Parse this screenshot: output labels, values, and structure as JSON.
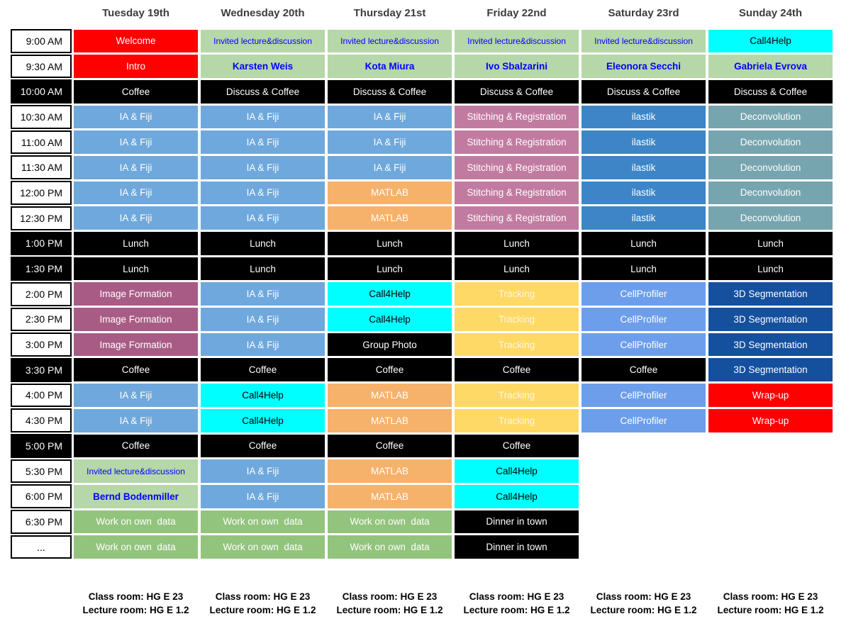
{
  "header": {
    "days": [
      "Tuesday 19th",
      "Wednesday 20th",
      "Thursday 21st",
      "Friday 22nd",
      "Saturday 23rd",
      "Sunday 24th"
    ]
  },
  "palette": {
    "red": {
      "bg": "#ff0000",
      "fg": "#ffffff"
    },
    "black": {
      "bg": "#000000",
      "fg": "#ffffff"
    },
    "fiji": {
      "bg": "#6fa8dc",
      "fg": "#ffffff"
    },
    "invited": {
      "bg": "#b6d7a8",
      "fg": "#0000ff",
      "fs": 12
    },
    "speaker": {
      "bg": "#b6d7a8",
      "fg": "#0000ff",
      "bold": true
    },
    "work": {
      "bg": "#93c47d",
      "fg": "#ffffff"
    },
    "matlab": {
      "bg": "#f6b26b",
      "fg": "#ffffff"
    },
    "call4help": {
      "bg": "#00ffff",
      "fg": "#000000"
    },
    "image_formation": {
      "bg": "#a85c85",
      "fg": "#ffffff"
    },
    "stitching": {
      "bg": "#c27ba0",
      "fg": "#ffffff"
    },
    "ilastik": {
      "bg": "#3d85c6",
      "fg": "#ffffff"
    },
    "deconvolution": {
      "bg": "#76a5af",
      "fg": "#ffffff"
    },
    "tracking": {
      "bg": "#ffd966",
      "fg": "#fdf6df"
    },
    "cellprofiler": {
      "bg": "#6d9eeb",
      "fg": "#ffffff"
    },
    "seg3d": {
      "bg": "#15509e",
      "fg": "#ffffff"
    },
    "empty": {
      "bg": "transparent",
      "fg": "#000000"
    }
  },
  "schedule": {
    "rows": [
      {
        "time": "9:00 AM",
        "dark": false,
        "cells": [
          {
            "text": "Welcome",
            "style": "red"
          },
          {
            "text": "Invited lecture&discussion",
            "style": "invited"
          },
          {
            "text": "Invited lecture&discussion",
            "style": "invited"
          },
          {
            "text": "Invited lecture&discussion",
            "style": "invited"
          },
          {
            "text": "Invited lecture&discussion",
            "style": "invited"
          },
          {
            "text": "Call4Help",
            "style": "call4help"
          }
        ]
      },
      {
        "time": "9:30 AM",
        "dark": false,
        "cells": [
          {
            "text": "Intro",
            "style": "red"
          },
          {
            "text": "Karsten Weis",
            "style": "speaker"
          },
          {
            "text": "Kota Miura",
            "style": "speaker"
          },
          {
            "text": "Ivo Sbalzarini",
            "style": "speaker"
          },
          {
            "text": "Eleonora Secchi",
            "style": "speaker"
          },
          {
            "text": "Gabriela Evrova",
            "style": "speaker"
          }
        ]
      },
      {
        "time": "10:00 AM",
        "dark": true,
        "cells": [
          {
            "text": "Coffee",
            "style": "black"
          },
          {
            "text": "Discuss & Coffee",
            "style": "black"
          },
          {
            "text": "Discuss & Coffee",
            "style": "black"
          },
          {
            "text": "Discuss & Coffee",
            "style": "black"
          },
          {
            "text": "Discuss & Coffee",
            "style": "black"
          },
          {
            "text": "Discuss & Coffee",
            "style": "black"
          }
        ]
      },
      {
        "time": "10:30 AM",
        "dark": false,
        "cells": [
          {
            "text": "IA & Fiji",
            "style": "fiji"
          },
          {
            "text": "IA & Fiji",
            "style": "fiji"
          },
          {
            "text": "IA & Fiji",
            "style": "fiji"
          },
          {
            "text": "Stitching & Registration",
            "style": "stitching"
          },
          {
            "text": "ilastik",
            "style": "ilastik"
          },
          {
            "text": "Deconvolution",
            "style": "deconvolution"
          }
        ]
      },
      {
        "time": "11:00 AM",
        "dark": false,
        "cells": [
          {
            "text": "IA & Fiji",
            "style": "fiji"
          },
          {
            "text": "IA & Fiji",
            "style": "fiji"
          },
          {
            "text": "IA & Fiji",
            "style": "fiji"
          },
          {
            "text": "Stitching & Registration",
            "style": "stitching"
          },
          {
            "text": "ilastik",
            "style": "ilastik"
          },
          {
            "text": "Deconvolution",
            "style": "deconvolution"
          }
        ]
      },
      {
        "time": "11:30 AM",
        "dark": false,
        "cells": [
          {
            "text": "IA & Fiji",
            "style": "fiji"
          },
          {
            "text": "IA & Fiji",
            "style": "fiji"
          },
          {
            "text": "IA & Fiji",
            "style": "fiji"
          },
          {
            "text": "Stitching & Registration",
            "style": "stitching"
          },
          {
            "text": "ilastik",
            "style": "ilastik"
          },
          {
            "text": "Deconvolution",
            "style": "deconvolution"
          }
        ]
      },
      {
        "time": "12:00 PM",
        "dark": false,
        "cells": [
          {
            "text": "IA & Fiji",
            "style": "fiji"
          },
          {
            "text": "IA & Fiji",
            "style": "fiji"
          },
          {
            "text": "MATLAB",
            "style": "matlab"
          },
          {
            "text": "Stitching & Registration",
            "style": "stitching"
          },
          {
            "text": "ilastik",
            "style": "ilastik"
          },
          {
            "text": "Deconvolution",
            "style": "deconvolution"
          }
        ]
      },
      {
        "time": "12:30 PM",
        "dark": false,
        "cells": [
          {
            "text": "IA & Fiji",
            "style": "fiji"
          },
          {
            "text": "IA & Fiji",
            "style": "fiji"
          },
          {
            "text": "MATLAB",
            "style": "matlab"
          },
          {
            "text": "Stitching & Registration",
            "style": "stitching"
          },
          {
            "text": "ilastik",
            "style": "ilastik"
          },
          {
            "text": "Deconvolution",
            "style": "deconvolution"
          }
        ]
      },
      {
        "time": "1:00 PM",
        "dark": true,
        "cells": [
          {
            "text": "Lunch",
            "style": "black"
          },
          {
            "text": "Lunch",
            "style": "black"
          },
          {
            "text": "Lunch",
            "style": "black"
          },
          {
            "text": "Lunch",
            "style": "black"
          },
          {
            "text": "Lunch",
            "style": "black"
          },
          {
            "text": "Lunch",
            "style": "black"
          }
        ]
      },
      {
        "time": "1:30 PM",
        "dark": true,
        "cells": [
          {
            "text": "Lunch",
            "style": "black"
          },
          {
            "text": "Lunch",
            "style": "black"
          },
          {
            "text": "Lunch",
            "style": "black"
          },
          {
            "text": "Lunch",
            "style": "black"
          },
          {
            "text": "Lunch",
            "style": "black"
          },
          {
            "text": "Lunch",
            "style": "black"
          }
        ]
      },
      {
        "time": "2:00 PM",
        "dark": false,
        "cells": [
          {
            "text": "Image Formation",
            "style": "image_formation"
          },
          {
            "text": "IA & Fiji",
            "style": "fiji"
          },
          {
            "text": "Call4Help",
            "style": "call4help"
          },
          {
            "text": "Tracking",
            "style": "tracking"
          },
          {
            "text": "CellProfiler",
            "style": "cellprofiler"
          },
          {
            "text": "3D Segmentation",
            "style": "seg3d"
          }
        ]
      },
      {
        "time": "2:30 PM",
        "dark": false,
        "cells": [
          {
            "text": "Image Formation",
            "style": "image_formation"
          },
          {
            "text": "IA & Fiji",
            "style": "fiji"
          },
          {
            "text": "Call4Help",
            "style": "call4help"
          },
          {
            "text": "Tracking",
            "style": "tracking"
          },
          {
            "text": "CellProfiler",
            "style": "cellprofiler"
          },
          {
            "text": "3D Segmentation",
            "style": "seg3d"
          }
        ]
      },
      {
        "time": "3:00 PM",
        "dark": false,
        "cells": [
          {
            "text": "Image Formation",
            "style": "image_formation"
          },
          {
            "text": "IA & Fiji",
            "style": "fiji"
          },
          {
            "text": "Group Photo",
            "style": "black"
          },
          {
            "text": "Tracking",
            "style": "tracking"
          },
          {
            "text": "CellProfiler",
            "style": "cellprofiler"
          },
          {
            "text": "3D Segmentation",
            "style": "seg3d"
          }
        ]
      },
      {
        "time": "3:30 PM",
        "dark": true,
        "cells": [
          {
            "text": "Coffee",
            "style": "black"
          },
          {
            "text": "Coffee",
            "style": "black"
          },
          {
            "text": "Coffee",
            "style": "black"
          },
          {
            "text": "Coffee",
            "style": "black"
          },
          {
            "text": "Coffee",
            "style": "black"
          },
          {
            "text": "3D Segmentation",
            "style": "seg3d"
          }
        ]
      },
      {
        "time": "4:00 PM",
        "dark": false,
        "cells": [
          {
            "text": "IA & Fiji",
            "style": "fiji"
          },
          {
            "text": "Call4Help",
            "style": "call4help"
          },
          {
            "text": "MATLAB",
            "style": "matlab"
          },
          {
            "text": "Tracking",
            "style": "tracking"
          },
          {
            "text": "CellProfiler",
            "style": "cellprofiler"
          },
          {
            "text": "Wrap-up",
            "style": "red"
          }
        ]
      },
      {
        "time": "4:30 PM",
        "dark": false,
        "cells": [
          {
            "text": "IA & Fiji",
            "style": "fiji"
          },
          {
            "text": "Call4Help",
            "style": "call4help"
          },
          {
            "text": "MATLAB",
            "style": "matlab"
          },
          {
            "text": "Tracking",
            "style": "tracking"
          },
          {
            "text": "CellProfiler",
            "style": "cellprofiler"
          },
          {
            "text": "Wrap-up",
            "style": "red"
          }
        ]
      },
      {
        "time": "5:00 PM",
        "dark": true,
        "cells": [
          {
            "text": "Coffee",
            "style": "black"
          },
          {
            "text": "Coffee",
            "style": "black"
          },
          {
            "text": "Coffee",
            "style": "black"
          },
          {
            "text": "Coffee",
            "style": "black"
          },
          {
            "text": "",
            "style": "empty"
          },
          {
            "text": "",
            "style": "empty"
          }
        ]
      },
      {
        "time": "5:30 PM",
        "dark": false,
        "cells": [
          {
            "text": "Invited lecture&discussion",
            "style": "invited"
          },
          {
            "text": "IA & Fiji",
            "style": "fiji"
          },
          {
            "text": "MATLAB",
            "style": "matlab"
          },
          {
            "text": "Call4Help",
            "style": "call4help"
          },
          {
            "text": "",
            "style": "empty"
          },
          {
            "text": "",
            "style": "empty"
          }
        ]
      },
      {
        "time": "6:00 PM",
        "dark": false,
        "cells": [
          {
            "text": "Bernd Bodenmiller",
            "style": "speaker"
          },
          {
            "text": "IA & Fiji",
            "style": "fiji"
          },
          {
            "text": "MATLAB",
            "style": "matlab"
          },
          {
            "text": "Call4Help",
            "style": "call4help"
          },
          {
            "text": "",
            "style": "empty"
          },
          {
            "text": "",
            "style": "empty"
          }
        ]
      },
      {
        "time": "6:30 PM",
        "dark": false,
        "cells": [
          {
            "text": "Work on own  data",
            "style": "work"
          },
          {
            "text": "Work on own  data",
            "style": "work"
          },
          {
            "text": "Work on own  data",
            "style": "work"
          },
          {
            "text": "Dinner in town",
            "style": "black"
          },
          {
            "text": "",
            "style": "empty"
          },
          {
            "text": "",
            "style": "empty"
          }
        ]
      },
      {
        "time": "...",
        "dark": false,
        "cells": [
          {
            "text": "Work on own  data",
            "style": "work"
          },
          {
            "text": "Work on own  data",
            "style": "work"
          },
          {
            "text": "Work on own  data",
            "style": "work"
          },
          {
            "text": "Dinner in town",
            "style": "black"
          },
          {
            "text": "",
            "style": "empty"
          },
          {
            "text": "",
            "style": "empty"
          }
        ]
      }
    ]
  },
  "footer": {
    "class_room": "Class room: HG E 23",
    "lecture_room": "Lecture room: HG E 1.2"
  }
}
